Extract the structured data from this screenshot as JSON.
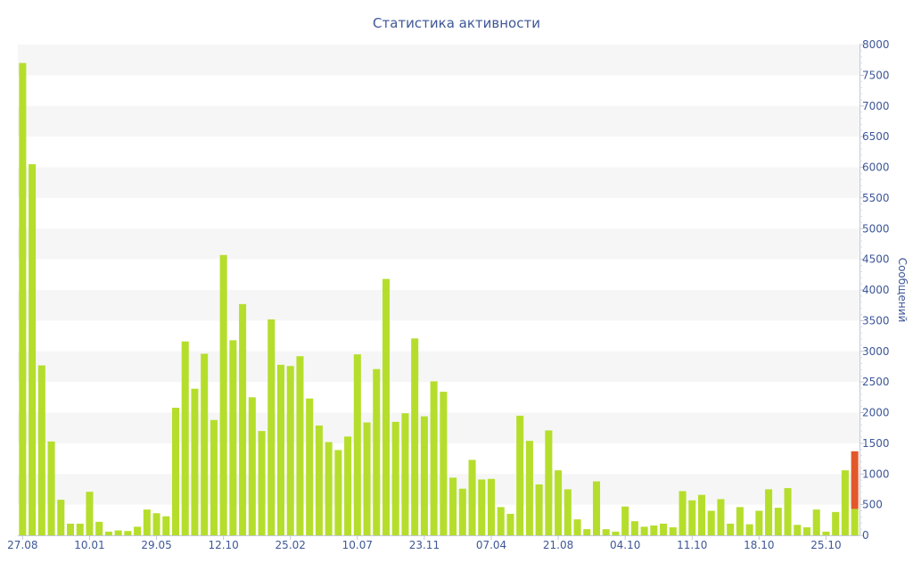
{
  "chart_data": {
    "type": "bar",
    "title": "Статистика активности",
    "xlabel": "",
    "ylabel": "Сообщений",
    "y_axis_side": "right",
    "ylim": [
      0,
      8000
    ],
    "y_ticks": [
      0,
      500,
      1000,
      1500,
      2000,
      2500,
      3000,
      3500,
      4000,
      4500,
      5000,
      5500,
      6000,
      6500,
      7000,
      7500,
      8000
    ],
    "x_tick_labels": [
      {
        "index": 0,
        "label": "27.08"
      },
      {
        "index": 7,
        "label": "10.01"
      },
      {
        "index": 14,
        "label": "29.05"
      },
      {
        "index": 21,
        "label": "12.10"
      },
      {
        "index": 28,
        "label": "25.02"
      },
      {
        "index": 35,
        "label": "10.07"
      },
      {
        "index": 42,
        "label": "23.11"
      },
      {
        "index": 49,
        "label": "07.04"
      },
      {
        "index": 56,
        "label": "21.08"
      },
      {
        "index": 63,
        "label": "04.10"
      },
      {
        "index": 70,
        "label": "11.10"
      },
      {
        "index": 77,
        "label": "18.10"
      },
      {
        "index": 84,
        "label": "25.10"
      }
    ],
    "grid": "horizontal bands",
    "colors": {
      "bar": "#b5de2c",
      "highlight": "#e2582b",
      "text": "#3e5797",
      "band": "#f6f6f6"
    },
    "values": [
      7700,
      6050,
      2770,
      1530,
      580,
      190,
      190,
      710,
      220,
      60,
      80,
      70,
      140,
      420,
      360,
      310,
      2080,
      3160,
      2390,
      2960,
      1880,
      4570,
      3180,
      3770,
      2250,
      1700,
      3520,
      2780,
      2760,
      2920,
      2230,
      1790,
      1520,
      1390,
      1610,
      2950,
      1840,
      2710,
      4180,
      1850,
      1990,
      3210,
      1940,
      2510,
      2340,
      940,
      760,
      1230,
      910,
      920,
      460,
      350,
      1950,
      1540,
      830,
      1710,
      1060,
      750,
      260,
      100,
      880,
      100,
      60,
      470,
      230,
      140,
      160,
      190,
      130,
      720,
      570,
      660,
      400,
      590,
      190,
      460,
      180,
      400,
      750,
      450,
      770,
      170,
      130,
      420,
      60,
      380,
      1060,
      1370
    ],
    "highlight": {
      "index": 87,
      "value": 1370,
      "base_value": 430
    }
  }
}
